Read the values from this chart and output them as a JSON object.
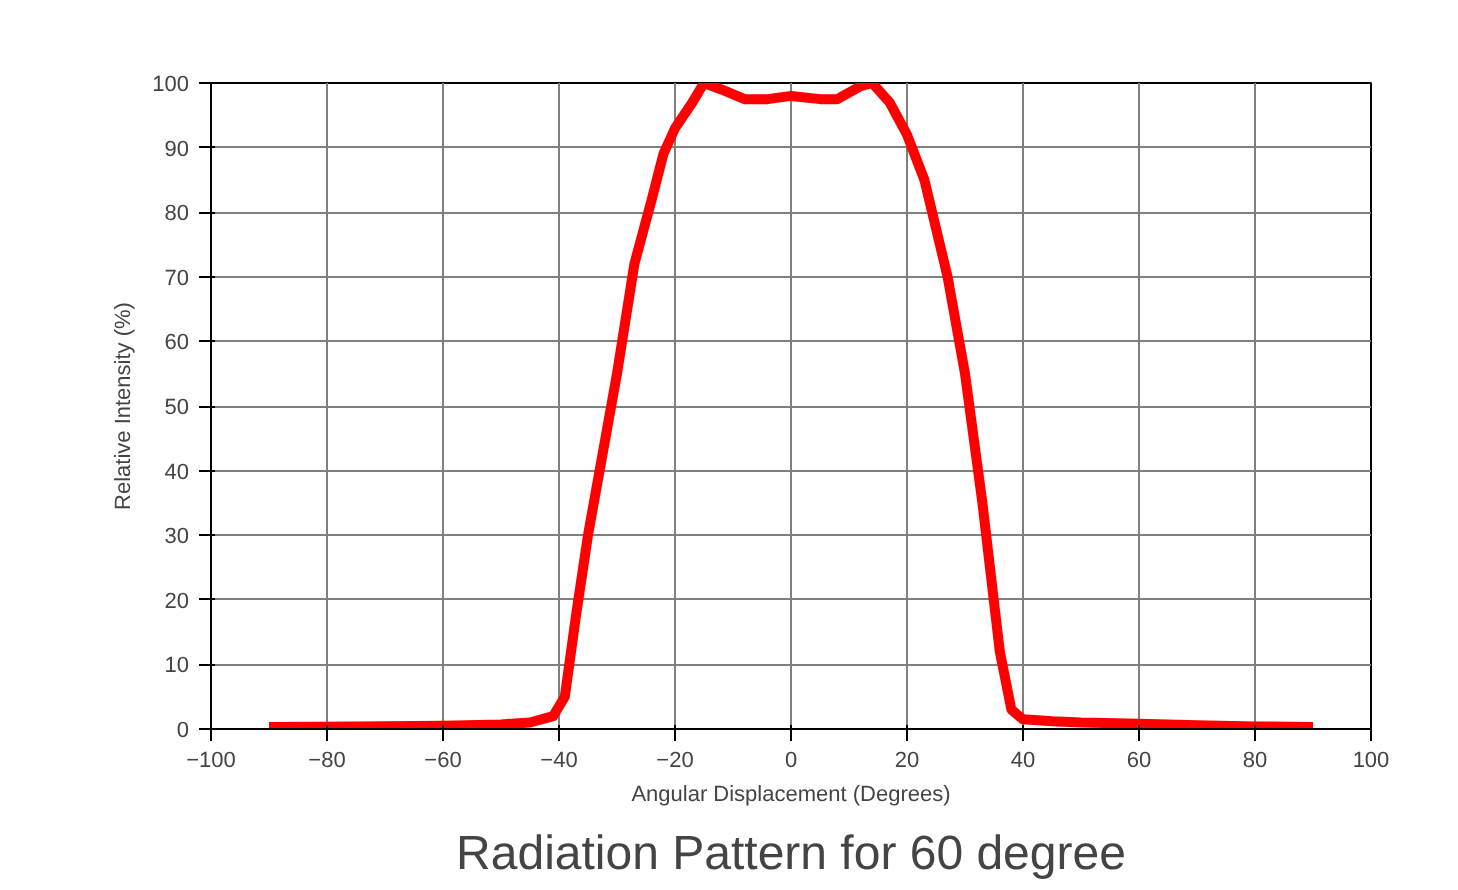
{
  "chart_data": {
    "type": "line",
    "title": "Radiation Pattern for 60 degree",
    "xlabel": "Angular Displacement (Degrees)",
    "ylabel": "Relative Intensity (%)",
    "xlim": [
      -100,
      100
    ],
    "ylim": [
      0,
      100
    ],
    "xticks": [
      -100,
      -80,
      -60,
      -40,
      -20,
      0,
      20,
      40,
      60,
      80,
      100
    ],
    "yticks": [
      0,
      10,
      20,
      30,
      40,
      50,
      60,
      70,
      80,
      90,
      100
    ],
    "grid": true,
    "marker": "none",
    "line_style": "solid",
    "series": [
      {
        "color": "#ff0000",
        "x": [
          -90,
          -75,
          -60,
          -50,
          -45,
          -41,
          -39,
          -37,
          -35,
          -32,
          -30,
          -27,
          -24,
          -22,
          -20,
          -17,
          -15,
          -12,
          -8,
          -4,
          0,
          5,
          8,
          10,
          12,
          14,
          17,
          20,
          23,
          27,
          30,
          33,
          36,
          38,
          40,
          45,
          50,
          60,
          70,
          80,
          90
        ],
        "values": [
          0.3,
          0.4,
          0.5,
          0.7,
          1,
          2,
          5,
          18,
          30,
          45,
          55,
          72,
          82,
          89,
          93,
          97,
          100,
          99,
          97.5,
          97.5,
          98,
          97.5,
          97.5,
          98.5,
          99.5,
          100,
          97,
          92,
          85,
          70,
          55,
          35,
          12,
          3,
          1.5,
          1.2,
          1,
          0.8,
          0.6,
          0.4,
          0.3
        ]
      }
    ]
  }
}
